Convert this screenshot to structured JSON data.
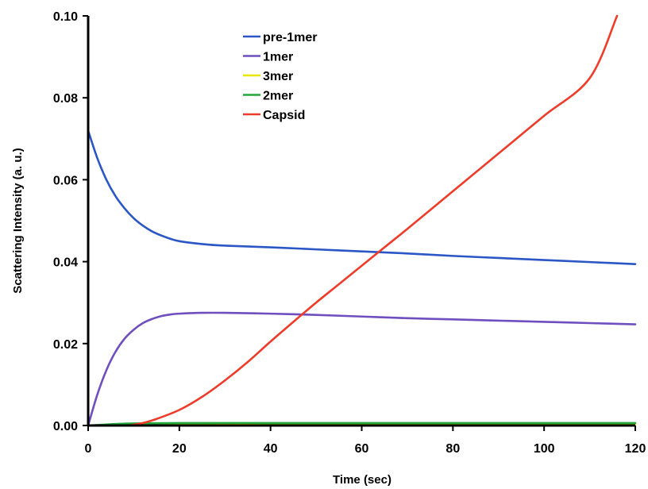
{
  "chart_data": {
    "type": "line",
    "title": "",
    "xlabel": "Time (sec)",
    "ylabel": "Scattering Intensity (a. u.)",
    "xlim": [
      0,
      120
    ],
    "ylim": [
      0,
      0.1
    ],
    "x_ticks": [
      "0",
      "20",
      "40",
      "60",
      "80",
      "100",
      "120"
    ],
    "y_ticks": [
      "0.00",
      "0.02",
      "0.04",
      "0.06",
      "0.08",
      "0.10"
    ],
    "grid": false,
    "legend_position": "top-center",
    "series": [
      {
        "name": "pre-1mer",
        "color": "#2a56c6",
        "x": [
          0,
          2,
          4,
          6,
          8,
          10,
          12,
          14,
          16,
          18,
          20,
          25,
          30,
          40,
          50,
          60,
          70,
          80,
          90,
          100,
          110,
          120
        ],
        "y": [
          0.072,
          0.0653,
          0.06,
          0.056,
          0.053,
          0.0506,
          0.0488,
          0.0474,
          0.0464,
          0.0456,
          0.045,
          0.0443,
          0.0439,
          0.0435,
          0.043,
          0.0425,
          0.042,
          0.0414,
          0.0409,
          0.0404,
          0.0399,
          0.0394
        ]
      },
      {
        "name": "1mer",
        "color": "#6f4fbf",
        "x": [
          0,
          2,
          4,
          6,
          8,
          10,
          12,
          14,
          16,
          18,
          20,
          25,
          30,
          40,
          50,
          60,
          70,
          80,
          90,
          100,
          110,
          120
        ],
        "y": [
          0.0,
          0.0075,
          0.0135,
          0.018,
          0.0212,
          0.0234,
          0.025,
          0.026,
          0.0267,
          0.0271,
          0.0273,
          0.0275,
          0.0275,
          0.0273,
          0.027,
          0.0266,
          0.0262,
          0.0259,
          0.0256,
          0.0253,
          0.025,
          0.0247
        ]
      },
      {
        "name": "3mer",
        "color": "#e8e600",
        "x": [
          0,
          10,
          20,
          40,
          60,
          80,
          100,
          120
        ],
        "y": [
          0.0,
          0.0003,
          0.0004,
          0.0004,
          0.0004,
          0.0004,
          0.0004,
          0.0004
        ]
      },
      {
        "name": "2mer",
        "color": "#22a83a",
        "x": [
          0,
          5,
          10,
          20,
          40,
          60,
          80,
          100,
          120
        ],
        "y": [
          0.0,
          0.0003,
          0.0005,
          0.0006,
          0.0006,
          0.0006,
          0.0006,
          0.0006,
          0.0006
        ]
      },
      {
        "name": "Capsid",
        "color": "#ef3b2a",
        "x": [
          0,
          8,
          10,
          12,
          15,
          20,
          25,
          30,
          35,
          40,
          45,
          50,
          55,
          60,
          65,
          70,
          80,
          90,
          100,
          110,
          116
        ],
        "y": [
          0.0,
          0.0,
          0.0002,
          0.0006,
          0.0016,
          0.0038,
          0.007,
          0.011,
          0.0155,
          0.0205,
          0.0253,
          0.03,
          0.0345,
          0.039,
          0.0435,
          0.048,
          0.0572,
          0.0664,
          0.0756,
          0.0848,
          0.1
        ]
      }
    ]
  }
}
